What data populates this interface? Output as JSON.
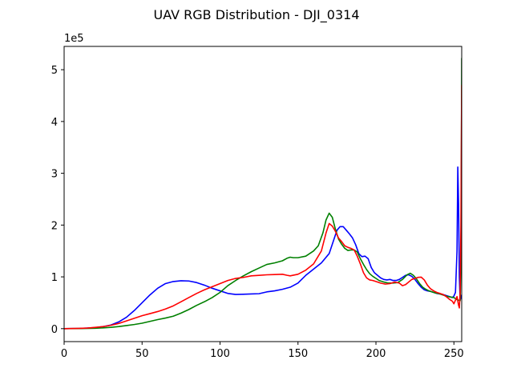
{
  "chart_data": {
    "type": "line",
    "title": "UAV RGB Distribution - DJI_0314",
    "xlabel": "",
    "ylabel": "",
    "y_offset_label": "1e5",
    "xlim": [
      0,
      255
    ],
    "ylim": [
      -25000,
      545000
    ],
    "x_ticks": [
      0,
      50,
      100,
      150,
      200,
      250
    ],
    "y_ticks": [
      0,
      100000,
      200000,
      300000,
      400000,
      500000
    ],
    "y_tick_labels": [
      "0",
      "1",
      "2",
      "3",
      "4",
      "5"
    ],
    "grid": false,
    "series": [
      {
        "color": "#0000ff",
        "points": [
          [
            0,
            0
          ],
          [
            10,
            500
          ],
          [
            20,
            2000
          ],
          [
            25,
            4000
          ],
          [
            30,
            7000
          ],
          [
            35,
            13000
          ],
          [
            40,
            22000
          ],
          [
            45,
            35000
          ],
          [
            50,
            50000
          ],
          [
            55,
            65000
          ],
          [
            60,
            78000
          ],
          [
            65,
            87000
          ],
          [
            70,
            91000
          ],
          [
            75,
            92500
          ],
          [
            80,
            92000
          ],
          [
            85,
            89000
          ],
          [
            90,
            84000
          ],
          [
            95,
            78000
          ],
          [
            100,
            73000
          ],
          [
            105,
            68000
          ],
          [
            110,
            66000
          ],
          [
            115,
            66500
          ],
          [
            120,
            67000
          ],
          [
            125,
            67500
          ],
          [
            130,
            71000
          ],
          [
            135,
            73000
          ],
          [
            140,
            76000
          ],
          [
            145,
            80000
          ],
          [
            150,
            88000
          ],
          [
            155,
            103000
          ],
          [
            160,
            115000
          ],
          [
            165,
            127000
          ],
          [
            170,
            145000
          ],
          [
            173,
            172000
          ],
          [
            175,
            190000
          ],
          [
            177,
            197000
          ],
          [
            179,
            197000
          ],
          [
            181,
            190000
          ],
          [
            183,
            183000
          ],
          [
            185,
            175000
          ],
          [
            187,
            162000
          ],
          [
            189,
            145000
          ],
          [
            191,
            139000
          ],
          [
            193,
            140000
          ],
          [
            195,
            135000
          ],
          [
            197,
            118000
          ],
          [
            199,
            108000
          ],
          [
            201,
            103000
          ],
          [
            203,
            98000
          ],
          [
            205,
            95000
          ],
          [
            207,
            94000
          ],
          [
            209,
            95000
          ],
          [
            211,
            93000
          ],
          [
            213,
            93000
          ],
          [
            215,
            95000
          ],
          [
            217,
            99000
          ],
          [
            219,
            103000
          ],
          [
            221,
            104000
          ],
          [
            223,
            101000
          ],
          [
            225,
            95000
          ],
          [
            227,
            87000
          ],
          [
            229,
            80000
          ],
          [
            231,
            75000
          ],
          [
            233,
            73000
          ],
          [
            235,
            72000
          ],
          [
            237,
            70000
          ],
          [
            239,
            68000
          ],
          [
            241,
            67000
          ],
          [
            243,
            66000
          ],
          [
            245,
            64000
          ],
          [
            247,
            62000
          ],
          [
            249,
            60000
          ],
          [
            250,
            63000
          ],
          [
            251,
            70000
          ],
          [
            252,
            150000
          ],
          [
            252.5,
            312000
          ],
          [
            253,
            240000
          ],
          [
            253.5,
            100000
          ],
          [
            254,
            55000
          ],
          [
            254.5,
            60000
          ],
          [
            255,
            65000
          ]
        ]
      },
      {
        "color": "#008000",
        "points": [
          [
            0,
            0
          ],
          [
            10,
            200
          ],
          [
            20,
            800
          ],
          [
            25,
            1500
          ],
          [
            30,
            2500
          ],
          [
            35,
            4000
          ],
          [
            40,
            6000
          ],
          [
            45,
            8000
          ],
          [
            50,
            10500
          ],
          [
            55,
            14000
          ],
          [
            60,
            17500
          ],
          [
            65,
            20500
          ],
          [
            70,
            24000
          ],
          [
            75,
            30000
          ],
          [
            80,
            37000
          ],
          [
            85,
            45000
          ],
          [
            90,
            52000
          ],
          [
            95,
            60000
          ],
          [
            100,
            70000
          ],
          [
            105,
            83000
          ],
          [
            110,
            93000
          ],
          [
            115,
            102000
          ],
          [
            120,
            110000
          ],
          [
            125,
            117000
          ],
          [
            130,
            124000
          ],
          [
            135,
            127000
          ],
          [
            140,
            131000
          ],
          [
            143,
            136000
          ],
          [
            145,
            138000
          ],
          [
            147,
            137000
          ],
          [
            150,
            137000
          ],
          [
            155,
            140000
          ],
          [
            160,
            150000
          ],
          [
            163,
            160000
          ],
          [
            166,
            185000
          ],
          [
            168,
            210000
          ],
          [
            170,
            223000
          ],
          [
            172,
            215000
          ],
          [
            174,
            192000
          ],
          [
            176,
            173000
          ],
          [
            178,
            163000
          ],
          [
            180,
            155000
          ],
          [
            182,
            151000
          ],
          [
            184,
            152000
          ],
          [
            186,
            152000
          ],
          [
            188,
            148000
          ],
          [
            190,
            135000
          ],
          [
            192,
            124000
          ],
          [
            194,
            114000
          ],
          [
            196,
            106000
          ],
          [
            198,
            101000
          ],
          [
            200,
            97000
          ],
          [
            202,
            93000
          ],
          [
            205,
            90000
          ],
          [
            208,
            88000
          ],
          [
            211,
            88000
          ],
          [
            214,
            89000
          ],
          [
            217,
            95000
          ],
          [
            220,
            104000
          ],
          [
            222,
            107000
          ],
          [
            224,
            103000
          ],
          [
            226,
            96000
          ],
          [
            228,
            87000
          ],
          [
            230,
            80000
          ],
          [
            232,
            76000
          ],
          [
            234,
            73000
          ],
          [
            236,
            71000
          ],
          [
            238,
            69000
          ],
          [
            240,
            68000
          ],
          [
            242,
            66000
          ],
          [
            244,
            64000
          ],
          [
            246,
            62000
          ],
          [
            248,
            61000
          ],
          [
            250,
            60000
          ],
          [
            251,
            58000
          ],
          [
            252,
            56000
          ],
          [
            253,
            55000
          ],
          [
            254,
            54000
          ],
          [
            254.6,
            150000
          ],
          [
            255,
            522000
          ]
        ]
      },
      {
        "color": "#ff0000",
        "points": [
          [
            0,
            0
          ],
          [
            10,
            600
          ],
          [
            15,
            1200
          ],
          [
            20,
            2500
          ],
          [
            25,
            4000
          ],
          [
            30,
            6500
          ],
          [
            35,
            10000
          ],
          [
            40,
            15000
          ],
          [
            45,
            20000
          ],
          [
            50,
            25000
          ],
          [
            55,
            29000
          ],
          [
            60,
            33000
          ],
          [
            65,
            38000
          ],
          [
            70,
            44000
          ],
          [
            75,
            52000
          ],
          [
            80,
            60000
          ],
          [
            85,
            68000
          ],
          [
            90,
            75000
          ],
          [
            95,
            81000
          ],
          [
            100,
            87000
          ],
          [
            105,
            93000
          ],
          [
            110,
            97000
          ],
          [
            115,
            99000
          ],
          [
            120,
            102000
          ],
          [
            125,
            103000
          ],
          [
            130,
            104000
          ],
          [
            135,
            104500
          ],
          [
            140,
            105000
          ],
          [
            143,
            103000
          ],
          [
            145,
            102000
          ],
          [
            150,
            105000
          ],
          [
            155,
            113000
          ],
          [
            160,
            125000
          ],
          [
            165,
            150000
          ],
          [
            168,
            185000
          ],
          [
            170,
            203000
          ],
          [
            172,
            198000
          ],
          [
            174,
            188000
          ],
          [
            176,
            175000
          ],
          [
            178,
            168000
          ],
          [
            180,
            160000
          ],
          [
            182,
            157000
          ],
          [
            184,
            155000
          ],
          [
            186,
            152000
          ],
          [
            188,
            140000
          ],
          [
            190,
            125000
          ],
          [
            192,
            108000
          ],
          [
            194,
            98000
          ],
          [
            196,
            94000
          ],
          [
            198,
            93000
          ],
          [
            200,
            91000
          ],
          [
            203,
            88000
          ],
          [
            206,
            86000
          ],
          [
            209,
            87000
          ],
          [
            212,
            90000
          ],
          [
            215,
            88000
          ],
          [
            217,
            83000
          ],
          [
            219,
            85000
          ],
          [
            221,
            90000
          ],
          [
            223,
            95000
          ],
          [
            225,
            97000
          ],
          [
            227,
            99000
          ],
          [
            229,
            99500
          ],
          [
            231,
            94000
          ],
          [
            233,
            84000
          ],
          [
            235,
            77000
          ],
          [
            237,
            73000
          ],
          [
            239,
            70000
          ],
          [
            241,
            68000
          ],
          [
            243,
            66000
          ],
          [
            245,
            62000
          ],
          [
            247,
            57000
          ],
          [
            249,
            53000
          ],
          [
            250,
            48000
          ],
          [
            251,
            55000
          ],
          [
            252,
            62000
          ],
          [
            253,
            45000
          ],
          [
            253.5,
            40000
          ],
          [
            254,
            70000
          ],
          [
            254.5,
            200000
          ],
          [
            255,
            470000
          ]
        ]
      }
    ]
  }
}
